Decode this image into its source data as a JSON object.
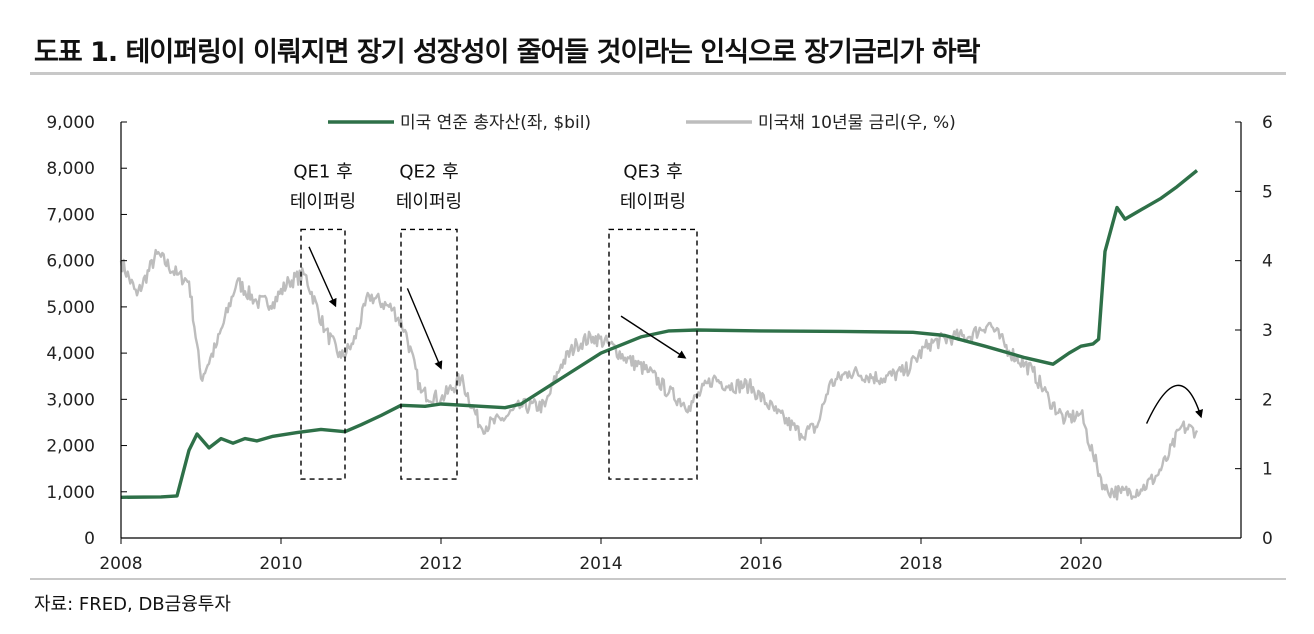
{
  "title": "도표 1. 테이퍼링이 이뤄지면 장기 성장성이 줄어들 것이라는 인식으로 장기금리가 하락",
  "source": "자료: FRED, DB금융투자",
  "colors": {
    "fed_assets": "#2e7048",
    "ust10y": "#bdbdbd",
    "axis": "#000000"
  },
  "chart_data": {
    "type": "line",
    "xlabel": "",
    "ylabel_left": "",
    "ylabel_right": "",
    "xlim": [
      2008.0,
      2022.0
    ],
    "ylim_left": [
      0,
      9000
    ],
    "ylim_right": [
      0,
      6
    ],
    "x_ticks": [
      "2008",
      "2010",
      "2012",
      "2014",
      "2016",
      "2018",
      "2020"
    ],
    "y_left_ticks": [
      "0",
      "1,000",
      "2,000",
      "3,000",
      "4,000",
      "5,000",
      "6,000",
      "7,000",
      "8,000",
      "9,000"
    ],
    "y_right_ticks": [
      "0",
      "1",
      "2",
      "3",
      "4",
      "5",
      "6"
    ],
    "legend": {
      "placement": "top-center"
    },
    "series": [
      {
        "name": "미국 연준 총자산(좌, $bil)",
        "axis": "left",
        "x": [
          2008.0,
          2008.5,
          2008.7,
          2008.85,
          2008.95,
          2009.1,
          2009.25,
          2009.4,
          2009.55,
          2009.7,
          2009.9,
          2010.2,
          2010.5,
          2010.8,
          2011.0,
          2011.25,
          2011.5,
          2011.8,
          2012.0,
          2012.5,
          2012.8,
          2013.0,
          2013.5,
          2014.0,
          2014.5,
          2014.85,
          2015.2,
          2016.0,
          2017.0,
          2017.9,
          2018.3,
          2018.8,
          2019.3,
          2019.65,
          2019.85,
          2020.0,
          2020.15,
          2020.22,
          2020.3,
          2020.45,
          2020.55,
          2020.7,
          2021.0,
          2021.2,
          2021.45
        ],
        "values": [
          880,
          890,
          910,
          1900,
          2250,
          1950,
          2150,
          2050,
          2150,
          2100,
          2200,
          2280,
          2350,
          2300,
          2450,
          2650,
          2870,
          2850,
          2900,
          2850,
          2820,
          2900,
          3450,
          4000,
          4350,
          4480,
          4500,
          4480,
          4470,
          4450,
          4380,
          4150,
          3900,
          3760,
          4000,
          4150,
          4200,
          4300,
          6200,
          7150,
          6900,
          7050,
          7350,
          7600,
          7950
        ]
      },
      {
        "name": "미국채 10년물 금리(우, %)",
        "axis": "right",
        "x": [
          2008.0,
          2008.2,
          2008.45,
          2008.7,
          2008.85,
          2009.0,
          2009.2,
          2009.45,
          2009.7,
          2009.9,
          2010.1,
          2010.3,
          2010.55,
          2010.75,
          2010.9,
          2011.1,
          2011.4,
          2011.55,
          2011.75,
          2012.0,
          2012.25,
          2012.5,
          2012.75,
          2013.0,
          2013.3,
          2013.5,
          2013.7,
          2013.9,
          2014.1,
          2014.3,
          2014.6,
          2014.85,
          2015.1,
          2015.4,
          2015.6,
          2015.85,
          2016.2,
          2016.5,
          2016.7,
          2016.85,
          2017.1,
          2017.5,
          2017.8,
          2018.1,
          2018.4,
          2018.6,
          2018.85,
          2019.1,
          2019.4,
          2019.6,
          2019.8,
          2020.0,
          2020.15,
          2020.3,
          2020.5,
          2020.75,
          2020.95,
          2021.1,
          2021.25,
          2021.45
        ],
        "values": [
          4.0,
          3.5,
          4.1,
          3.8,
          3.7,
          2.3,
          2.8,
          3.7,
          3.4,
          3.4,
          3.7,
          3.8,
          3.0,
          2.6,
          2.8,
          3.5,
          3.3,
          3.0,
          2.1,
          2.0,
          2.3,
          1.6,
          1.7,
          1.9,
          1.9,
          2.5,
          2.8,
          2.9,
          2.8,
          2.6,
          2.4,
          2.1,
          1.9,
          2.3,
          2.2,
          2.2,
          1.8,
          1.5,
          1.6,
          2.2,
          2.4,
          2.3,
          2.4,
          2.8,
          2.9,
          2.9,
          3.1,
          2.7,
          2.4,
          2.0,
          1.7,
          1.8,
          1.2,
          0.7,
          0.65,
          0.7,
          0.9,
          1.2,
          1.6,
          1.55
        ]
      }
    ],
    "annotations": [
      {
        "label_line1": "QE1 후",
        "label_line2": "테이퍼링",
        "box_x": [
          2010.25,
          2010.8
        ],
        "box_y_right": [
          0.85,
          4.45
        ],
        "arrow_from": [
          2010.35,
          4.2
        ],
        "arrow_to": [
          2010.68,
          3.35
        ]
      },
      {
        "label_line1": "QE2 후",
        "label_line2": "테이퍼링",
        "box_x": [
          2011.5,
          2012.2
        ],
        "box_y_right": [
          0.85,
          4.45
        ],
        "arrow_from": [
          2011.58,
          3.6
        ],
        "arrow_to": [
          2012.0,
          2.45
        ]
      },
      {
        "label_line1": "QE3 후",
        "label_line2": "테이퍼링",
        "box_x": [
          2014.1,
          2015.2
        ],
        "box_y_right": [
          0.85,
          4.45
        ],
        "arrow_from": [
          2014.25,
          3.2
        ],
        "arrow_to": [
          2015.05,
          2.6
        ]
      }
    ],
    "curve_arrow": {
      "from": [
        2020.82,
        1.65
      ],
      "peak": [
        2021.2,
        2.2
      ],
      "to": [
        2021.5,
        1.75
      ]
    }
  }
}
